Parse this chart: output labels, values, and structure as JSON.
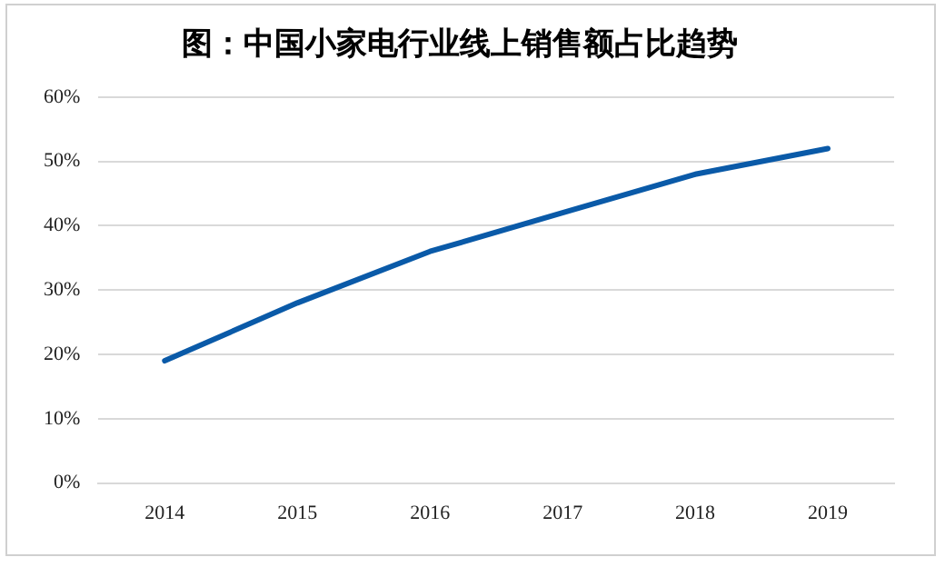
{
  "chart_data": {
    "type": "line",
    "title": "图：中国小家电行业线上销售额占比趋势",
    "categories": [
      "2014",
      "2015",
      "2016",
      "2017",
      "2018",
      "2019"
    ],
    "series": [
      {
        "color": "#0a5aa8",
        "values": [
          19,
          28,
          36,
          42,
          48,
          52
        ]
      }
    ],
    "ylim": [
      0,
      60
    ],
    "yticks": [
      {
        "value": 0,
        "label": "0%"
      },
      {
        "value": 10,
        "label": "10%"
      },
      {
        "value": 20,
        "label": "20%"
      },
      {
        "value": 30,
        "label": "30%"
      },
      {
        "value": 40,
        "label": "40%"
      },
      {
        "value": 50,
        "label": "50%"
      },
      {
        "value": 60,
        "label": "60%"
      }
    ],
    "grid": "y",
    "legend": false,
    "marker": "none",
    "line_style": "solid"
  }
}
